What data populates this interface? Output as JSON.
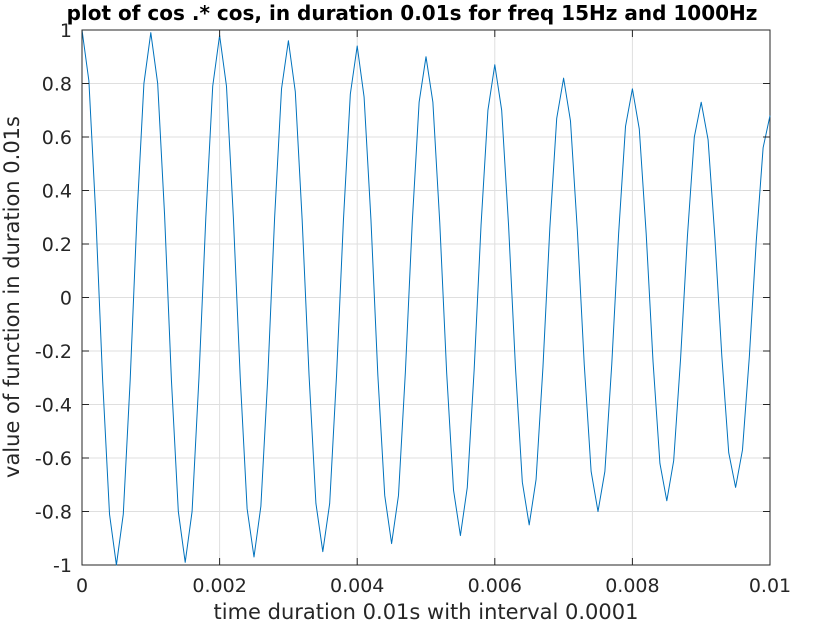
{
  "figure": {
    "background": "#ffffff",
    "axes_color": "#262626",
    "grid_color": "#dfdfdf",
    "line_color": "#0072bd"
  },
  "chart_data": {
    "type": "line",
    "title": "plot of cos .* cos, in duration 0.01s for freq 15Hz and 1000Hz",
    "xlabel": "time duration 0.01s with interval 0.0001",
    "ylabel": "value of function in duration 0.01s",
    "xlim": [
      0,
      0.01
    ],
    "ylim": [
      -1,
      1
    ],
    "grid": true,
    "legend": "none",
    "x_ticks": [
      0,
      0.002,
      0.004,
      0.006,
      0.008,
      0.01
    ],
    "x_tick_labels": [
      "0",
      "0.002",
      "0.004",
      "0.006",
      "0.008",
      "0.01"
    ],
    "y_ticks": [
      -1,
      -0.8,
      -0.6,
      -0.4,
      -0.2,
      0,
      0.2,
      0.4,
      0.6,
      0.8,
      1
    ],
    "y_tick_labels": [
      "-1",
      "-0.8",
      "-0.6",
      "-0.4",
      "-0.2",
      "0",
      "0.2",
      "0.4",
      "0.6",
      "0.8",
      "1"
    ],
    "series": [
      {
        "x_start": 0,
        "x_step": 0.0001,
        "values": [
          1,
          0.81,
          0.31,
          -0.31,
          -0.81,
          -1,
          -0.81,
          -0.31,
          0.31,
          0.8,
          0.99,
          0.8,
          0.31,
          -0.31,
          -0.8,
          -0.99,
          -0.8,
          -0.3,
          0.3,
          0.79,
          0.98,
          0.79,
          0.3,
          -0.3,
          -0.79,
          -0.97,
          -0.78,
          -0.3,
          0.3,
          0.78,
          0.96,
          0.77,
          0.29,
          -0.29,
          -0.77,
          -0.95,
          -0.77,
          -0.29,
          0.29,
          0.76,
          0.94,
          0.75,
          0.29,
          -0.29,
          -0.74,
          -0.92,
          -0.74,
          -0.28,
          0.28,
          0.73,
          0.9,
          0.73,
          0.28,
          -0.28,
          -0.72,
          -0.89,
          -0.71,
          -0.27,
          0.27,
          0.7,
          0.87,
          0.7,
          0.27,
          -0.26,
          -0.69,
          -0.85,
          -0.68,
          -0.26,
          0.26,
          0.67,
          0.82,
          0.66,
          0.25,
          -0.25,
          -0.65,
          -0.8,
          -0.65,
          -0.25,
          0.24,
          0.64,
          0.78,
          0.63,
          0.24,
          -0.24,
          -0.62,
          -0.76,
          -0.61,
          -0.23,
          0.23,
          0.6,
          0.73,
          0.59,
          0.22,
          -0.22,
          -0.58,
          -0.71,
          -0.57,
          -0.22,
          0.21,
          0.56,
          0.68
        ]
      }
    ]
  }
}
